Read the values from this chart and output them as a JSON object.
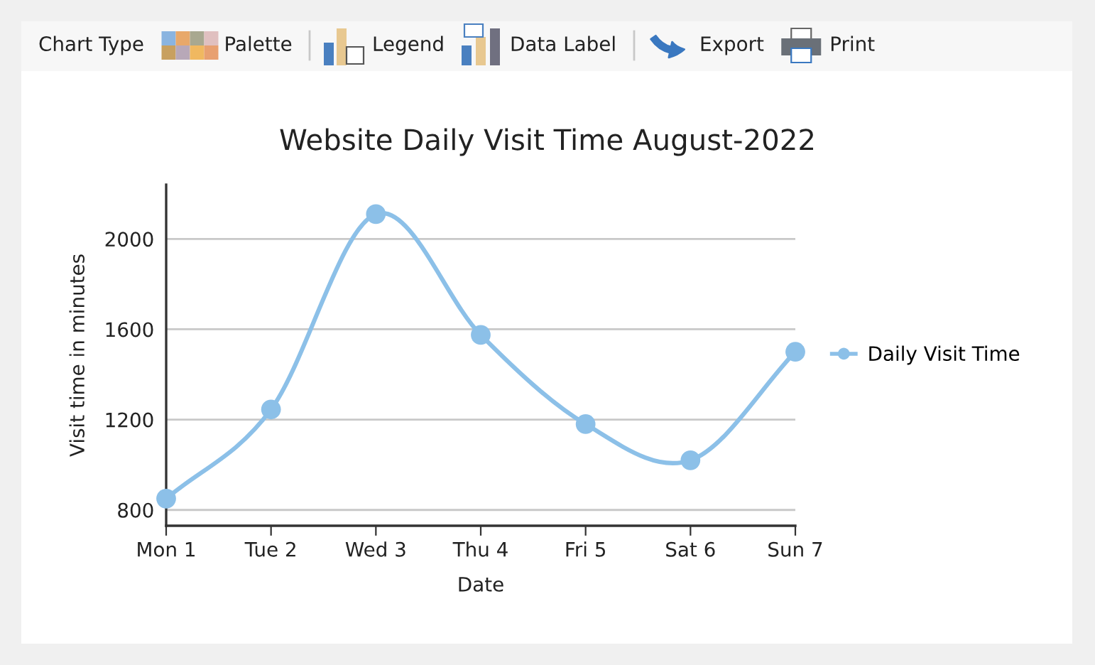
{
  "chart_data": {
    "type": "line",
    "title": "Website Daily Visit Time August-2022",
    "xlabel": "Date",
    "ylabel": "Visit time in minutes",
    "categories": [
      "Mon 1",
      "Tue 2",
      "Wed 3",
      "Thu 4",
      "Fri 5",
      "Sat 6",
      "Sun 7"
    ],
    "series": [
      {
        "name": "Daily Visit Time",
        "color": "#8cc0e8",
        "values": [
          850,
          1245,
          2110,
          1575,
          1180,
          1020,
          1500
        ]
      }
    ],
    "ylim": [
      730,
      2240
    ],
    "yticks": [
      800,
      1200,
      1600,
      2000
    ],
    "grid": "y",
    "legend": "right",
    "marker": "circle",
    "line_style": "solid",
    "annotations": [
      "Chart Type",
      "Palette",
      "Legend",
      "Data Label",
      "Export",
      "Print"
    ]
  }
}
